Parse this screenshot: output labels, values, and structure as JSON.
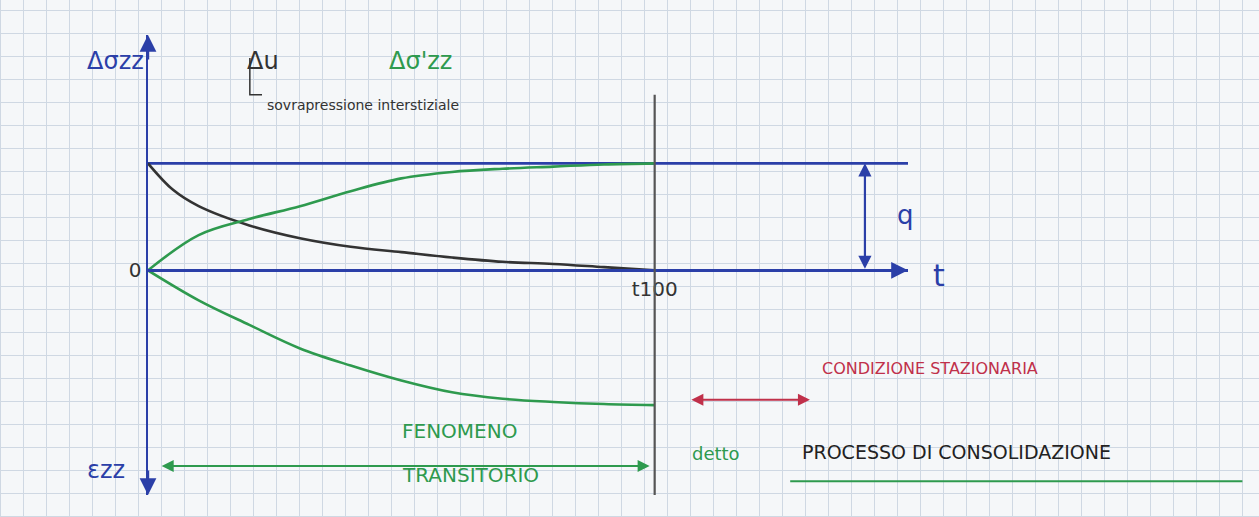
{
  "chart_data": {
    "type": "line",
    "x_label": "t",
    "y_label": "Δσzz",
    "y_label_bottom": "εzz",
    "xlim": [
      0,
      1.5
    ],
    "xticks": [
      {
        "value": 1,
        "label": "t100"
      }
    ],
    "ylim": [
      -2.1,
      2.2
    ],
    "yticks": [
      0
    ],
    "grid": false,
    "series": [
      {
        "color": "#2b3fa8",
        "x": [
          0,
          1.5
        ],
        "values": [
          1,
          1
        ]
      },
      {
        "name": "Δu",
        "color": "#333333",
        "x": [
          0,
          0.05,
          0.1,
          0.2,
          0.3,
          0.4,
          0.5,
          0.6,
          0.7,
          0.8,
          0.9,
          1.0
        ],
        "values": [
          1,
          0.75,
          0.6,
          0.42,
          0.3,
          0.22,
          0.17,
          0.12,
          0.08,
          0.06,
          0.03,
          0
        ]
      },
      {
        "name": "Δσ'zz",
        "color": "#2e9a4e",
        "x": [
          0,
          0.1,
          0.2,
          0.3,
          0.4,
          0.5,
          0.6,
          0.7,
          0.8,
          0.9,
          1.0
        ],
        "values": [
          0,
          0.33,
          0.48,
          0.6,
          0.74,
          0.86,
          0.92,
          0.95,
          0.97,
          0.99,
          1
        ]
      },
      {
        "color": "#2e9a4e",
        "x": [
          0,
          0.1,
          0.2,
          0.3,
          0.4,
          0.5,
          0.6,
          0.7,
          0.8,
          0.9,
          1.0
        ],
        "values": [
          0,
          -0.28,
          -0.51,
          -0.73,
          -0.89,
          -1.03,
          -1.14,
          -1.2,
          -1.23,
          -1.25,
          -1.26
        ]
      }
    ],
    "annotations": [
      "sovrapressione interstiziale",
      "q",
      "CONDIZIONE STAZIONARIA",
      "FENOMENO TRANSITORIO",
      "detto",
      "PROCESSO DI CONSOLIDAZIONE"
    ]
  }
}
